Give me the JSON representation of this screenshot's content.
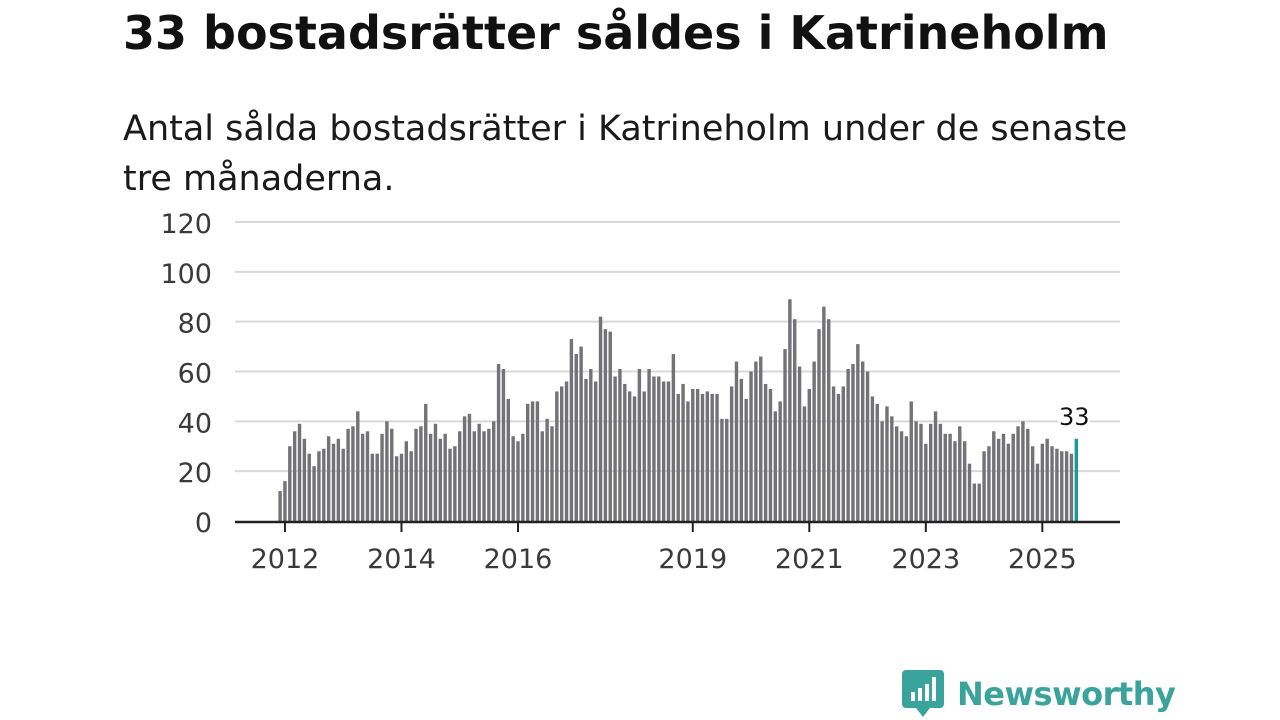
{
  "title": "33 bostadsrätter såldes i Katrineholm",
  "subtitle": "Antal sålda bostadsrätter i Katrineholm under de senaste tre månaderna.",
  "brand": {
    "name": "Newsworthy"
  },
  "colors": {
    "bar": "#737277",
    "highlight": "#1a9a99",
    "grid": "#d9d9d9",
    "axis": "#222222",
    "brand": "#3aa39b"
  },
  "chart_data": {
    "type": "bar",
    "title": "33 bostadsrätter såldes i Katrineholm",
    "subtitle": "Antal sålda bostadsrätter i Katrineholm under de senaste tre månaderna.",
    "xlabel": "",
    "ylabel": "",
    "ylim": [
      0,
      120
    ],
    "yticks": [
      "0",
      "20",
      "40",
      "60",
      "80",
      "100",
      "120"
    ],
    "xtick_labels": [
      {
        "label": "2012",
        "index": 1
      },
      {
        "label": "2014",
        "index": 25
      },
      {
        "label": "2016",
        "index": 49
      },
      {
        "label": "2019",
        "index": 85
      },
      {
        "label": "2021",
        "index": 109
      },
      {
        "label": "2023",
        "index": 133
      },
      {
        "label": "2025",
        "index": 157
      }
    ],
    "first_period": "2011-12",
    "last_period": "2025-09",
    "highlight_label": "33",
    "values": [
      12,
      16,
      30,
      36,
      39,
      33,
      27,
      22,
      28,
      29,
      34,
      31,
      33,
      29,
      37,
      38,
      44,
      35,
      36,
      27,
      27,
      35,
      40,
      37,
      26,
      27,
      32,
      28,
      37,
      38,
      47,
      35,
      39,
      33,
      35,
      29,
      30,
      36,
      42,
      43,
      36,
      39,
      36,
      37,
      40,
      63,
      61,
      49,
      34,
      32,
      35,
      47,
      48,
      48,
      36,
      41,
      38,
      52,
      54,
      56,
      73,
      67,
      70,
      57,
      61,
      56,
      82,
      77,
      76,
      58,
      61,
      55,
      52,
      50,
      61,
      52,
      61,
      58,
      58,
      56,
      56,
      67,
      51,
      55,
      48,
      53,
      53,
      51,
      52,
      51,
      51,
      41,
      41,
      54,
      64,
      57,
      49,
      60,
      64,
      66,
      55,
      53,
      44,
      48,
      69,
      89,
      81,
      62,
      46,
      53,
      64,
      77,
      86,
      81,
      54,
      51,
      54,
      61,
      63,
      71,
      64,
      60,
      50,
      47,
      40,
      46,
      42,
      38,
      36,
      34,
      48,
      40,
      39,
      31,
      39,
      44,
      39,
      35,
      35,
      32,
      38,
      32,
      23,
      15,
      15,
      28,
      30,
      36,
      33,
      35,
      31,
      35,
      38,
      40,
      37,
      30,
      23,
      31,
      33,
      30,
      29,
      28,
      28,
      27,
      33
    ]
  }
}
